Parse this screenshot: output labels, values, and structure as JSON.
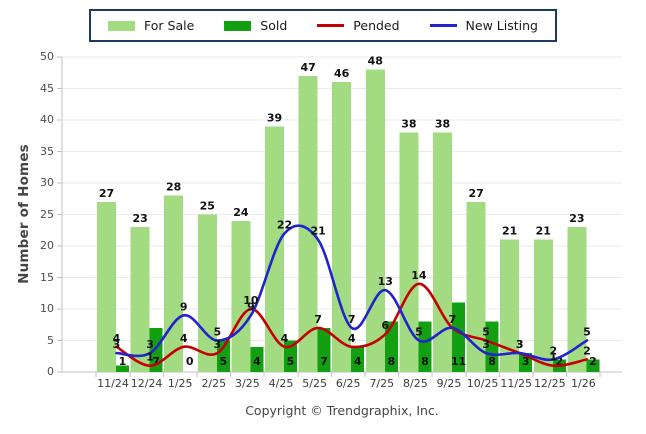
{
  "legend": {
    "border_color": "#1B3A60",
    "items": [
      {
        "label": "For Sale",
        "series_type": "bar",
        "color": "#A2DB81"
      },
      {
        "label": "Sold",
        "series_type": "bar",
        "color": "#12A012"
      },
      {
        "label": "Pended",
        "series_type": "line",
        "color": "#C40000"
      },
      {
        "label": "New Listing",
        "series_type": "line",
        "color": "#2222CE"
      }
    ]
  },
  "chart_data": {
    "type": "bar",
    "subtype": "grouped bars with overlaid smooth trend lines",
    "title": "",
    "xlabel": "",
    "ylabel": "Number of Homes",
    "ylim": [
      0,
      50
    ],
    "ytick_step": 5,
    "grid": true,
    "legend_position": "top-center",
    "categories": [
      "11/24",
      "12/24",
      "1/25",
      "2/25",
      "3/25",
      "4/25",
      "5/25",
      "6/25",
      "7/25",
      "8/25",
      "9/25",
      "10/25",
      "11/25",
      "12/25",
      "1/26"
    ],
    "series": [
      {
        "name": "For Sale",
        "type": "bar",
        "color": "#A2DB81",
        "values": [
          27,
          23,
          28,
          25,
          24,
          39,
          47,
          46,
          48,
          38,
          38,
          27,
          21,
          21,
          23
        ]
      },
      {
        "name": "Sold",
        "type": "bar",
        "color": "#12A012",
        "values": [
          1,
          7,
          0,
          5,
          4,
          5,
          7,
          4,
          8,
          8,
          11,
          8,
          3,
          2,
          2
        ]
      },
      {
        "name": "Pended",
        "type": "line",
        "color": "#C40000",
        "values": [
          4,
          1,
          4,
          3,
          10,
          4,
          7,
          4,
          6,
          14,
          7,
          5,
          3,
          1,
          2
        ]
      },
      {
        "name": "New Listing",
        "type": "line",
        "color": "#2222CE",
        "values": [
          3,
          3,
          9,
          5,
          9,
          22,
          21,
          7,
          13,
          5,
          7,
          3,
          3,
          2,
          5
        ]
      }
    ]
  },
  "footer": {
    "copyright": "Copyright © Trendgraphix, Inc."
  }
}
